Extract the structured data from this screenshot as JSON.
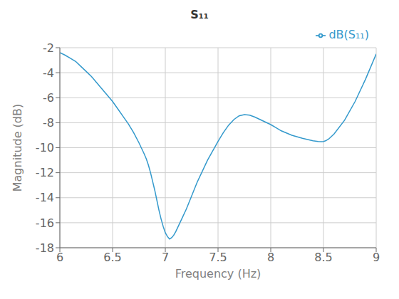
{
  "chart_data": {
    "type": "line",
    "title": "S₁₁",
    "xlabel": "Frequency (Hz)",
    "ylabel": "Magnitude (dB)",
    "x": [
      6.0,
      6.05,
      6.1,
      6.15,
      6.2,
      6.25,
      6.3,
      6.35,
      6.4,
      6.45,
      6.5,
      6.55,
      6.6,
      6.65,
      6.7,
      6.75,
      6.8,
      6.82,
      6.84,
      6.86,
      6.88,
      6.9,
      6.92,
      6.94,
      6.96,
      6.98,
      7.0,
      7.02,
      7.04,
      7.06,
      7.08,
      7.1,
      7.15,
      7.2,
      7.3,
      7.4,
      7.5,
      7.55,
      7.6,
      7.65,
      7.7,
      7.75,
      7.8,
      7.85,
      7.9,
      7.95,
      8.0,
      8.05,
      8.1,
      8.2,
      8.3,
      8.4,
      8.45,
      8.48,
      8.5,
      8.52,
      8.55,
      8.6,
      8.7,
      8.8,
      8.9,
      9.0
    ],
    "series": [
      {
        "name": "dB(S₁₁)",
        "color": "#3399CC",
        "values": [
          -2.4,
          -2.6,
          -2.85,
          -3.1,
          -3.5,
          -3.9,
          -4.3,
          -4.8,
          -5.3,
          -5.8,
          -6.3,
          -6.9,
          -7.5,
          -8.1,
          -8.8,
          -9.6,
          -10.5,
          -10.9,
          -11.4,
          -12.0,
          -12.7,
          -13.4,
          -14.2,
          -15.0,
          -15.7,
          -16.3,
          -16.8,
          -17.1,
          -17.3,
          -17.2,
          -17.0,
          -16.7,
          -15.8,
          -14.9,
          -12.8,
          -11.0,
          -9.5,
          -8.8,
          -8.2,
          -7.75,
          -7.45,
          -7.35,
          -7.4,
          -7.55,
          -7.75,
          -7.95,
          -8.15,
          -8.4,
          -8.65,
          -9.0,
          -9.25,
          -9.45,
          -9.5,
          -9.52,
          -9.5,
          -9.45,
          -9.3,
          -8.9,
          -7.8,
          -6.3,
          -4.5,
          -2.5
        ]
      }
    ],
    "xlim": [
      6,
      9
    ],
    "ylim": [
      -18,
      -2
    ],
    "xticks": [
      6,
      6.5,
      7,
      7.5,
      8,
      8.5,
      9
    ],
    "yticks": [
      -18,
      -16,
      -14,
      -12,
      -10,
      -8,
      -6,
      -4,
      -2
    ],
    "grid": true,
    "legend": "upper right"
  }
}
